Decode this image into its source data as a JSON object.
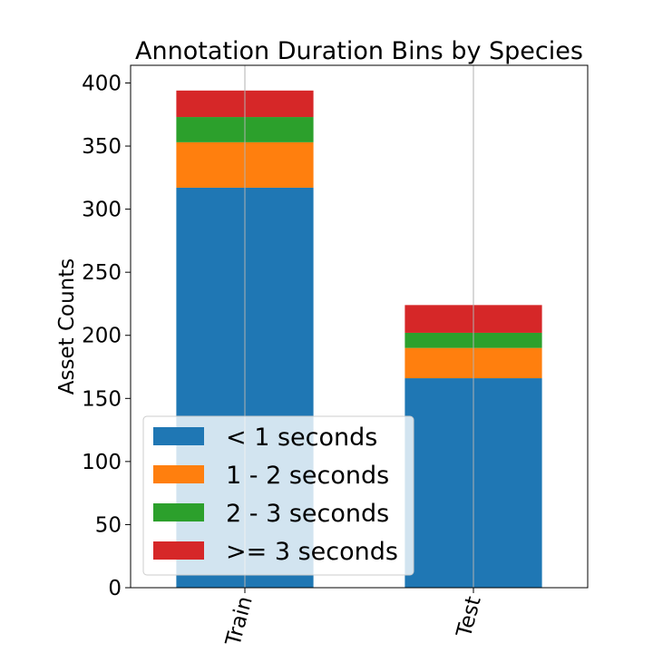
{
  "chart_data": {
    "type": "bar",
    "stacked": true,
    "title": "Annotation Duration Bins by Species",
    "xlabel": "",
    "ylabel": "Asset Counts",
    "categories": [
      "Train",
      "Test"
    ],
    "series": [
      {
        "name": "< 1 seconds",
        "color": "#1f77b4",
        "values": [
          317,
          166
        ]
      },
      {
        "name": "1 - 2 seconds",
        "color": "#ff7f0e",
        "values": [
          36,
          24
        ]
      },
      {
        "name": "2 - 3 seconds",
        "color": "#2ca02c",
        "values": [
          20,
          12
        ]
      },
      {
        "name": ">= 3 seconds",
        "color": "#d62728",
        "values": [
          21,
          22
        ]
      }
    ],
    "ylim": [
      0,
      414
    ],
    "yticks": [
      0,
      50,
      100,
      150,
      200,
      250,
      300,
      350,
      400
    ],
    "grid": "x-axis only",
    "legend": "lower-left",
    "x_tick_rotation": "rotated"
  }
}
